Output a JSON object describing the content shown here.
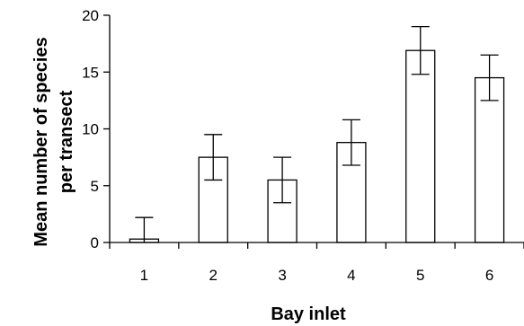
{
  "chart_data": {
    "type": "bar",
    "categories": [
      "1",
      "2",
      "3",
      "4",
      "5",
      "6"
    ],
    "values": [
      0.3,
      7.5,
      5.5,
      8.8,
      16.9,
      14.5
    ],
    "errors": [
      1.9,
      2.0,
      2.0,
      2.0,
      2.1,
      2.0
    ],
    "xlabel": "Bay inlet",
    "ylabel_line1": "Mean number of species",
    "ylabel_line2": "per transect",
    "ylim": [
      0,
      20
    ],
    "yticks": [
      0,
      5,
      10,
      15,
      20
    ],
    "bar_fill": "#ffffff",
    "bar_stroke": "#000000",
    "grid": false,
    "legend": "none"
  }
}
